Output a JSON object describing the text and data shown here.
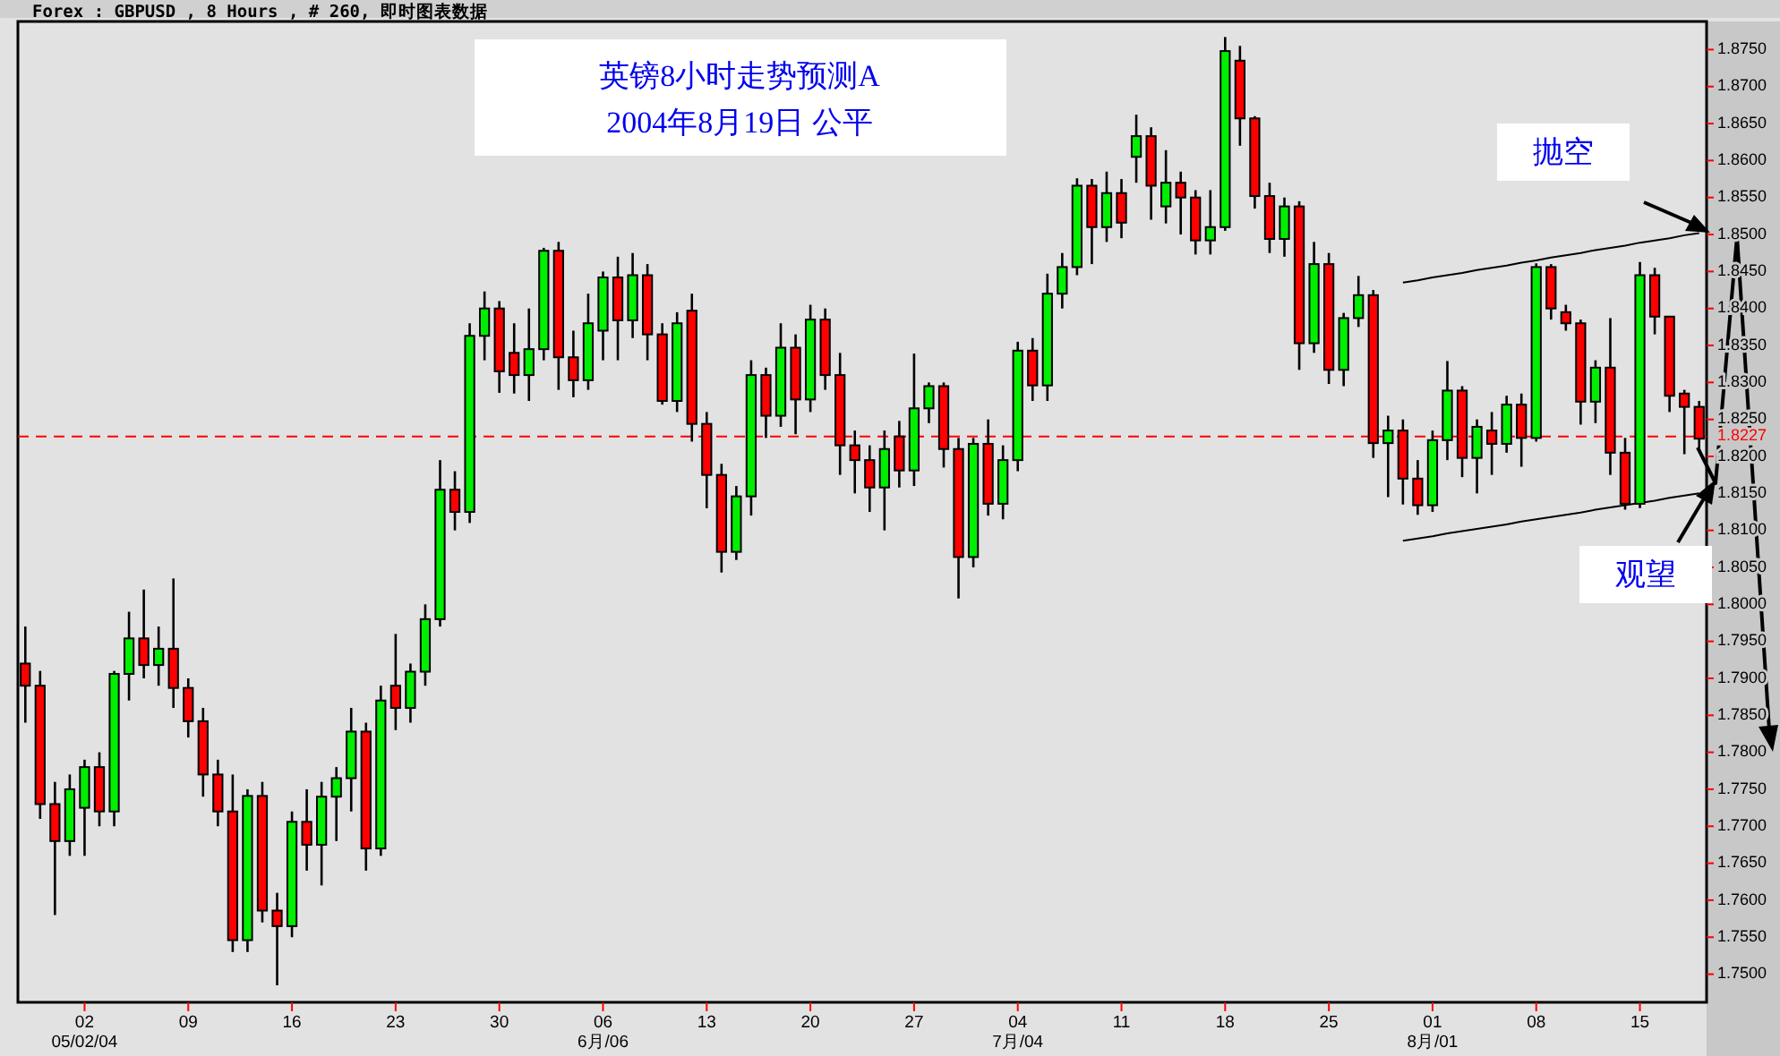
{
  "chart_data": {
    "type": "candlestick",
    "title": "英镑8小时走势预测A",
    "subtitle": "2004年8月19日  公平",
    "annotations": [
      "Forex : GBPUSD , 8 Hours , # 260, 即时图表数据",
      "抛空",
      "观望"
    ],
    "categories": [
      null,
      null,
      null,
      null,
      "02\n05/02/04",
      null,
      null,
      null,
      null,
      null,
      null,
      "09",
      null,
      null,
      null,
      null,
      null,
      null,
      "16",
      null,
      null,
      null,
      null,
      null,
      null,
      "23",
      null,
      null,
      null,
      null,
      null,
      null,
      "30",
      null,
      null,
      null,
      null,
      null,
      null,
      "06\n6月/06",
      null,
      null,
      null,
      null,
      null,
      null,
      "13",
      null,
      null,
      null,
      null,
      null,
      null,
      "20",
      null,
      null,
      null,
      null,
      null,
      null,
      "27",
      null,
      null,
      null,
      null,
      null,
      null,
      "04\n7月/04",
      null,
      null,
      null,
      null,
      null,
      null,
      "11",
      null,
      null,
      null,
      null,
      null,
      null,
      "18",
      null,
      null,
      null,
      null,
      null,
      null,
      "25",
      null,
      null,
      null,
      null,
      null,
      null,
      "01\n8月/01",
      null,
      null,
      null,
      null,
      null,
      null,
      "08",
      null,
      null,
      null,
      null,
      null,
      null,
      "15",
      null,
      null,
      null,
      null
    ],
    "colors": [
      "#ff0000",
      "#ff0000",
      "#ff0000",
      "#00ee00",
      "#00ee00",
      "#ff0000",
      "#00ee00",
      "#00ee00",
      "#ff0000",
      "#00ee00",
      "#ff0000",
      "#ff0000",
      "#ff0000",
      "#ff0000",
      "#ff0000",
      "#00ee00",
      "#ff0000",
      "#ff0000",
      "#00ee00",
      "#ff0000",
      "#00ee00",
      "#00ee00",
      "#00ee00",
      "#ff0000",
      "#00ee00",
      "#ff0000",
      "#00ee00",
      "#00ee00",
      "#00ee00",
      "#ff0000",
      "#00ee00",
      "#00ee00",
      "#ff0000",
      "#ff0000",
      "#00ee00",
      "#00ee00",
      "#ff0000",
      "#ff0000",
      "#00ee00",
      "#00ee00",
      "#ff0000",
      "#00ee00",
      "#ff0000",
      "#ff0000",
      "#00ee00",
      "#ff0000",
      "#ff0000",
      "#ff0000",
      "#00ee00",
      "#00ee00",
      "#ff0000",
      "#00ee00",
      "#ff0000",
      "#00ee00",
      "#ff0000",
      "#ff0000",
      "#ff0000",
      "#ff0000",
      "#00ee00",
      "#ff0000",
      "#00ee00",
      "#00ee00",
      "#ff0000",
      "#ff0000",
      "#00ee00",
      "#ff0000",
      "#00ee00",
      "#00ee00",
      "#ff0000",
      "#00ee00",
      "#00ee00",
      "#00ee00",
      "#ff0000",
      "#00ee00",
      "#ff0000",
      "#00ee00",
      "#ff0000",
      "#00ee00",
      "#ff0000",
      "#ff0000",
      "#00ee00",
      "#00ee00",
      "#ff0000",
      "#ff0000",
      "#ff0000",
      "#00ee00",
      "#ff0000",
      "#00ee00",
      "#ff0000",
      "#00ee00",
      "#00ee00",
      "#ff0000",
      "#00ee00",
      "#ff0000",
      "#ff0000",
      "#00ee00",
      "#00ee00",
      "#ff0000",
      "#00ee00",
      "#ff0000",
      "#00ee00",
      "#ff0000",
      "#00ee00",
      "#ff0000",
      "#ff0000",
      "#ff0000",
      "#00ee00",
      "#ff0000",
      "#ff0000",
      "#00ee00",
      "#ff0000",
      "#ff0000",
      "#ff0000",
      "#ff0000"
    ],
    "ohlc": [
      [
        1.792,
        1.797,
        1.784,
        1.789
      ],
      [
        1.789,
        1.791,
        1.771,
        1.773
      ],
      [
        1.773,
        1.776,
        1.758,
        1.768
      ],
      [
        1.768,
        1.777,
        1.766,
        1.775
      ],
      [
        1.7725,
        1.779,
        1.766,
        1.778
      ],
      [
        1.778,
        1.78,
        1.77,
        1.772
      ],
      [
        1.772,
        1.791,
        1.77,
        1.7906
      ],
      [
        1.7906,
        1.799,
        1.787,
        1.7954
      ],
      [
        1.7954,
        1.802,
        1.79,
        1.7918
      ],
      [
        1.7918,
        1.797,
        1.789,
        1.794
      ],
      [
        1.794,
        1.8035,
        1.786,
        1.7887
      ],
      [
        1.7887,
        1.79,
        1.782,
        1.7842
      ],
      [
        1.7842,
        1.786,
        1.774,
        1.777
      ],
      [
        1.777,
        1.779,
        1.77,
        1.772
      ],
      [
        1.772,
        1.777,
        1.753,
        1.7546
      ],
      [
        1.7546,
        1.775,
        1.753,
        1.7741
      ],
      [
        1.7741,
        1.776,
        1.757,
        1.7586
      ],
      [
        1.7586,
        1.761,
        1.7485,
        1.7565
      ],
      [
        1.7565,
        1.772,
        1.755,
        1.7706
      ],
      [
        1.7706,
        1.775,
        1.764,
        1.7675
      ],
      [
        1.7675,
        1.776,
        1.762,
        1.774
      ],
      [
        1.774,
        1.778,
        1.768,
        1.7765
      ],
      [
        1.7765,
        1.786,
        1.772,
        1.7828
      ],
      [
        1.7828,
        1.784,
        1.764,
        1.767
      ],
      [
        1.767,
        1.789,
        1.766,
        1.787
      ],
      [
        1.789,
        1.796,
        1.783,
        1.786
      ],
      [
        1.786,
        1.792,
        1.784,
        1.7909
      ],
      [
        1.7909,
        1.8,
        1.789,
        1.798
      ],
      [
        1.798,
        1.8195,
        1.797,
        1.8155
      ],
      [
        1.8155,
        1.818,
        1.81,
        1.8125
      ],
      [
        1.8125,
        1.838,
        1.811,
        1.8363
      ],
      [
        1.8363,
        1.8423,
        1.833,
        1.84
      ],
      [
        1.84,
        1.841,
        1.8286,
        1.8315
      ],
      [
        1.834,
        1.838,
        1.8285,
        1.831
      ],
      [
        1.831,
        1.84,
        1.8275,
        1.8345
      ],
      [
        1.8345,
        1.8482,
        1.833,
        1.8478
      ],
      [
        1.8478,
        1.849,
        1.829,
        1.8334
      ],
      [
        1.8334,
        1.837,
        1.828,
        1.8303
      ],
      [
        1.8303,
        1.842,
        1.829,
        1.838
      ],
      [
        1.837,
        1.845,
        1.833,
        1.8442
      ],
      [
        1.8442,
        1.847,
        1.833,
        1.8384
      ],
      [
        1.8384,
        1.8475,
        1.836,
        1.8445
      ],
      [
        1.8445,
        1.846,
        1.833,
        1.8365
      ],
      [
        1.8365,
        1.838,
        1.827,
        1.8275
      ],
      [
        1.8275,
        1.8395,
        1.826,
        1.838
      ],
      [
        1.8397,
        1.842,
        1.822,
        1.8244
      ],
      [
        1.8244,
        1.826,
        1.813,
        1.8175
      ],
      [
        1.8175,
        1.819,
        1.8043,
        1.8071
      ],
      [
        1.8071,
        1.816,
        1.806,
        1.8146
      ],
      [
        1.8146,
        1.833,
        1.812,
        1.831
      ],
      [
        1.831,
        1.832,
        1.8225,
        1.8255
      ],
      [
        1.8255,
        1.838,
        1.824,
        1.8347
      ],
      [
        1.8347,
        1.8365,
        1.823,
        1.8277
      ],
      [
        1.8277,
        1.8405,
        1.826,
        1.8385
      ],
      [
        1.8385,
        1.84,
        1.829,
        1.831
      ],
      [
        1.831,
        1.834,
        1.8175,
        1.8215
      ],
      [
        1.8215,
        1.8235,
        1.815,
        1.8195
      ],
      [
        1.8195,
        1.8215,
        1.8125,
        1.8158
      ],
      [
        1.8158,
        1.8235,
        1.81,
        1.821
      ],
      [
        1.8227,
        1.8248,
        1.8158,
        1.8181
      ],
      [
        1.8181,
        1.8339,
        1.816,
        1.8265
      ],
      [
        1.8265,
        1.83,
        1.8245,
        1.8295
      ],
      [
        1.8295,
        1.83,
        1.8185,
        1.821
      ],
      [
        1.821,
        1.8225,
        1.8008,
        1.8064
      ],
      [
        1.8064,
        1.8225,
        1.805,
        1.8217
      ],
      [
        1.8217,
        1.825,
        1.812,
        1.8136
      ],
      [
        1.8136,
        1.8215,
        1.8115,
        1.8195
      ],
      [
        1.8195,
        1.8355,
        1.818,
        1.8343
      ],
      [
        1.8343,
        1.836,
        1.8275,
        1.8296
      ],
      [
        1.8296,
        1.8447,
        1.8275,
        1.842
      ],
      [
        1.842,
        1.8475,
        1.84,
        1.8456
      ],
      [
        1.8456,
        1.8576,
        1.8445,
        1.8566
      ],
      [
        1.8566,
        1.8575,
        1.846,
        1.851
      ],
      [
        1.851,
        1.8585,
        1.849,
        1.8556
      ],
      [
        1.8556,
        1.8575,
        1.8495,
        1.8516
      ],
      [
        1.8605,
        1.8662,
        1.857,
        1.8633
      ],
      [
        1.8633,
        1.8645,
        1.852,
        1.8566
      ],
      [
        1.8538,
        1.8614,
        1.8515,
        1.857
      ],
      [
        1.857,
        1.8585,
        1.85,
        1.855
      ],
      [
        1.855,
        1.856,
        1.8473,
        1.8492
      ],
      [
        1.8492,
        1.856,
        1.8473,
        1.851
      ],
      [
        1.851,
        1.8767,
        1.8505,
        1.8748
      ],
      [
        1.8735,
        1.8755,
        1.862,
        1.8657
      ],
      [
        1.8657,
        1.866,
        1.8535,
        1.8552
      ],
      [
        1.8552,
        1.857,
        1.8475,
        1.8494
      ],
      [
        1.8494,
        1.855,
        1.847,
        1.8538
      ],
      [
        1.8538,
        1.8545,
        1.8317,
        1.8353
      ],
      [
        1.8353,
        1.849,
        1.834,
        1.846
      ],
      [
        1.846,
        1.8475,
        1.8298,
        1.8317
      ],
      [
        1.8317,
        1.8394,
        1.8295,
        1.8387
      ],
      [
        1.8387,
        1.8444,
        1.8375,
        1.8418
      ],
      [
        1.8418,
        1.8425,
        1.8198,
        1.8218
      ],
      [
        1.8218,
        1.8255,
        1.8145,
        1.8235
      ],
      [
        1.8235,
        1.825,
        1.8135,
        1.817
      ],
      [
        1.817,
        1.8195,
        1.8121,
        1.8134
      ],
      [
        1.8134,
        1.8235,
        1.8125,
        1.8222
      ],
      [
        1.8222,
        1.8329,
        1.8195,
        1.8289
      ],
      [
        1.8289,
        1.8295,
        1.8172,
        1.8198
      ],
      [
        1.8198,
        1.825,
        1.815,
        1.824
      ],
      [
        1.8235,
        1.826,
        1.8175,
        1.8217
      ],
      [
        1.8217,
        1.8282,
        1.8205,
        1.827
      ],
      [
        1.827,
        1.8285,
        1.8186,
        1.8225
      ],
      [
        1.8225,
        1.8461,
        1.822,
        1.8456
      ],
      [
        1.8456,
        1.846,
        1.8385,
        1.84
      ],
      [
        1.8395,
        1.8405,
        1.837,
        1.838
      ],
      [
        1.838,
        1.8385,
        1.8243,
        1.8274
      ],
      [
        1.8274,
        1.833,
        1.8245,
        1.832
      ],
      [
        1.832,
        1.8387,
        1.8175,
        1.8205
      ],
      [
        1.8205,
        1.8225,
        1.8128,
        1.8136
      ],
      [
        1.8136,
        1.8463,
        1.813,
        1.8445
      ],
      [
        1.8445,
        1.8455,
        1.8365,
        1.8389
      ],
      [
        1.8389,
        1.839,
        1.826,
        1.8282
      ],
      [
        1.8285,
        1.829,
        1.8203,
        1.8267
      ],
      [
        1.8267,
        1.8275,
        1.8207,
        1.8224
      ]
    ],
    "series": [
      {
        "type": "line",
        "color": "#000000",
        "values": [
          null,
          null,
          null,
          null,
          null,
          null,
          null,
          null,
          null,
          null,
          null,
          null,
          null,
          null,
          null,
          null,
          null,
          null,
          null,
          null,
          null,
          null,
          null,
          null,
          null,
          null,
          null,
          null,
          null,
          null,
          null,
          null,
          null,
          null,
          null,
          null,
          null,
          null,
          null,
          null,
          null,
          null,
          null,
          null,
          null,
          null,
          null,
          null,
          null,
          null,
          null,
          null,
          null,
          null,
          null,
          null,
          null,
          null,
          null,
          null,
          null,
          null,
          null,
          null,
          null,
          null,
          null,
          null,
          null,
          null,
          null,
          null,
          null,
          null,
          null,
          null,
          null,
          null,
          null,
          null,
          null,
          null,
          null,
          null,
          null,
          null,
          null,
          null,
          null,
          null,
          null,
          null,
          null,
          1.8435,
          1.8438,
          1.8442,
          1.8445,
          1.8448,
          1.8452,
          1.8455,
          1.8458,
          1.8462,
          1.8465,
          1.8469,
          1.8472,
          1.8475,
          1.8479,
          1.8482,
          1.8485,
          1.8489,
          1.8492,
          1.8495,
          1.8499,
          1.8502
        ]
      },
      {
        "type": "line",
        "color": "#000000",
        "values": [
          null,
          null,
          null,
          null,
          null,
          null,
          null,
          null,
          null,
          null,
          null,
          null,
          null,
          null,
          null,
          null,
          null,
          null,
          null,
          null,
          null,
          null,
          null,
          null,
          null,
          null,
          null,
          null,
          null,
          null,
          null,
          null,
          null,
          null,
          null,
          null,
          null,
          null,
          null,
          null,
          null,
          null,
          null,
          null,
          null,
          null,
          null,
          null,
          null,
          null,
          null,
          null,
          null,
          null,
          null,
          null,
          null,
          null,
          null,
          null,
          null,
          null,
          null,
          null,
          null,
          null,
          null,
          null,
          null,
          null,
          null,
          null,
          null,
          null,
          null,
          null,
          null,
          null,
          null,
          null,
          null,
          null,
          null,
          null,
          null,
          null,
          null,
          null,
          null,
          null,
          null,
          null,
          null,
          1.8086,
          1.8089,
          1.8092,
          1.8096,
          1.8099,
          1.8102,
          1.8105,
          1.8108,
          1.8112,
          1.8115,
          1.8118,
          1.8121,
          1.8124,
          1.8128,
          1.8131,
          1.8134,
          1.8137,
          1.814,
          1.8144,
          1.8147,
          1.815
        ]
      }
    ],
    "ref_lines": [
      {
        "axis": "y",
        "value": 1.8227,
        "label": "1.8227",
        "color": "#ff0000",
        "line_style": "dashed"
      }
    ],
    "ylim": [
      1.7462,
      1.8788
    ],
    "yticks": [
      {
        "value": 1.75,
        "label": "1.7500"
      },
      {
        "value": 1.755,
        "label": "1.7550"
      },
      {
        "value": 1.76,
        "label": "1.7600"
      },
      {
        "value": 1.765,
        "label": "1.7650"
      },
      {
        "value": 1.77,
        "label": "1.7700"
      },
      {
        "value": 1.775,
        "label": "1.7750"
      },
      {
        "value": 1.78,
        "label": "1.7800"
      },
      {
        "value": 1.785,
        "label": "1.7850"
      },
      {
        "value": 1.79,
        "label": "1.7900"
      },
      {
        "value": 1.795,
        "label": "1.7950"
      },
      {
        "value": 1.8,
        "label": "1.8000"
      },
      {
        "value": 1.805,
        "label": "1.8050"
      },
      {
        "value": 1.81,
        "label": "1.8100"
      },
      {
        "value": 1.815,
        "label": "1.8150"
      },
      {
        "value": 1.82,
        "label": "1.8200"
      },
      {
        "value": 1.825,
        "label": "1.8250"
      },
      {
        "value": 1.83,
        "label": "1.8300"
      },
      {
        "value": 1.835,
        "label": "1.8350"
      },
      {
        "value": 1.84,
        "label": "1.8400"
      },
      {
        "value": 1.845,
        "label": "1.8450"
      },
      {
        "value": 1.85,
        "label": "1.8500"
      },
      {
        "value": 1.855,
        "label": "1.8550"
      },
      {
        "value": 1.86,
        "label": "1.8600"
      },
      {
        "value": 1.865,
        "label": "1.8650"
      },
      {
        "value": 1.87,
        "label": "1.8700"
      },
      {
        "value": 1.875,
        "label": "1.8750"
      }
    ]
  }
}
